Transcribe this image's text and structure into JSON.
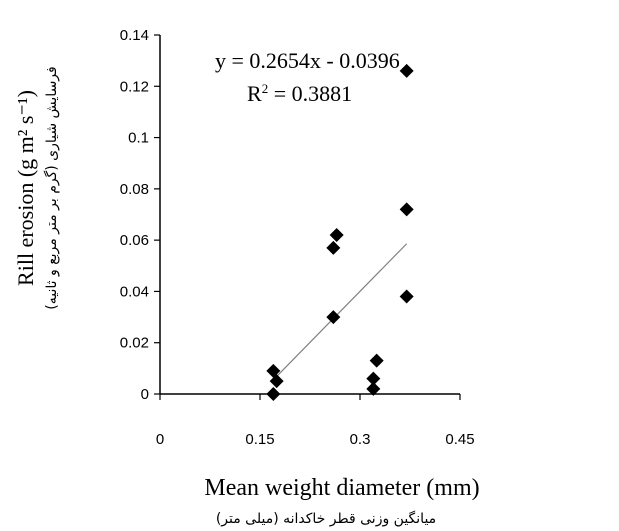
{
  "chart_data": {
    "type": "scatter",
    "xlabel": "Mean weight diameter (mm)",
    "xlabel_fa": "میانگین وزنی قطر خاکدانه (میلی متر)",
    "ylabel": "Rill erosion (g m² s⁻¹)",
    "ylabel_fa": "فرسایش شیاری (گرم بر متر مربع و ثانیه)",
    "xlim": [
      0,
      0.45
    ],
    "ylim": [
      0,
      0.14
    ],
    "x_ticks": [
      "0",
      "0.15",
      "0.3",
      "0.45"
    ],
    "y_ticks": [
      "0",
      "0.02",
      "0.04",
      "0.06",
      "0.08",
      "0.1",
      "0.12",
      "0.14"
    ],
    "points": [
      {
        "x": 0.37,
        "y": 0.126
      },
      {
        "x": 0.37,
        "y": 0.072
      },
      {
        "x": 0.37,
        "y": 0.038
      },
      {
        "x": 0.265,
        "y": 0.062
      },
      {
        "x": 0.26,
        "y": 0.057
      },
      {
        "x": 0.26,
        "y": 0.03
      },
      {
        "x": 0.325,
        "y": 0.013
      },
      {
        "x": 0.32,
        "y": 0.006
      },
      {
        "x": 0.32,
        "y": 0.002
      },
      {
        "x": 0.17,
        "y": 0.009
      },
      {
        "x": 0.175,
        "y": 0.005
      },
      {
        "x": 0.17,
        "y": 0.0
      }
    ],
    "trendline": {
      "slope": 0.2654,
      "intercept": -0.0396,
      "x_range": [
        0.17,
        0.37
      ]
    },
    "equation": "y = 0.2654x - 0.0396",
    "r_squared_label": "R",
    "r_squared_sup": "2",
    "r_squared_value": " = 0.3881",
    "colors": {
      "marker": "#000000",
      "trendline": "#808080",
      "axis": "#000000"
    }
  }
}
